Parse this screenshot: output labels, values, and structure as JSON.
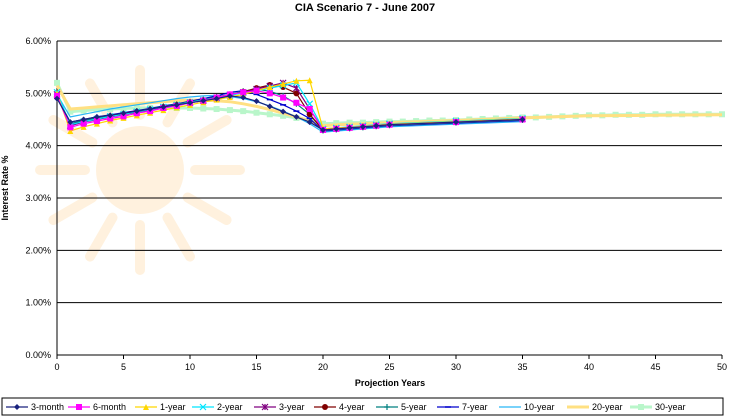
{
  "chart_data": {
    "type": "line",
    "title": "CIA Scenario 7 - June 2007",
    "xlabel": "Projection Years",
    "ylabel": "Interest Rate %",
    "xlim": [
      0,
      50
    ],
    "ylim": [
      0,
      6
    ],
    "x_ticks": [
      "0",
      "5",
      "10",
      "15",
      "20",
      "25",
      "30",
      "35",
      "40",
      "45",
      "50"
    ],
    "y_ticks": [
      "0.00%",
      "1.00%",
      "2.00%",
      "3.00%",
      "4.00%",
      "5.00%",
      "6.00%"
    ],
    "grid": "horizontal",
    "legend_position": "bottom",
    "series": [
      {
        "name": "3-month",
        "color": "#1a237e",
        "marker": "diamond",
        "x": [
          0,
          1,
          2,
          3,
          4,
          5,
          6,
          7,
          8,
          9,
          10,
          11,
          12,
          13,
          14,
          15,
          16,
          17,
          18,
          19,
          20,
          21,
          22,
          23,
          24,
          25,
          30,
          35
        ],
        "y": [
          4.9,
          4.45,
          4.5,
          4.55,
          4.58,
          4.62,
          4.66,
          4.7,
          4.74,
          4.78,
          4.82,
          4.86,
          4.9,
          4.95,
          4.92,
          4.85,
          4.75,
          4.65,
          4.55,
          4.45,
          4.3,
          4.32,
          4.34,
          4.36,
          4.38,
          4.4,
          4.45,
          4.5
        ]
      },
      {
        "name": "6-month",
        "color": "#ff00ff",
        "marker": "square",
        "x": [
          0,
          1,
          2,
          3,
          4,
          5,
          6,
          7,
          8,
          9,
          10,
          11,
          12,
          13,
          14,
          15,
          16,
          17,
          18,
          19,
          20,
          21,
          22,
          23,
          24,
          25,
          30,
          35
        ],
        "y": [
          4.95,
          4.35,
          4.42,
          4.47,
          4.52,
          4.56,
          4.62,
          4.66,
          4.72,
          4.76,
          4.82,
          4.86,
          4.92,
          4.98,
          5.02,
          5.05,
          5.0,
          4.92,
          4.82,
          4.7,
          4.3,
          4.32,
          4.34,
          4.36,
          4.38,
          4.4,
          4.45,
          4.5
        ]
      },
      {
        "name": "1-year",
        "color": "#ffd700",
        "marker": "triangle",
        "x": [
          0,
          1,
          2,
          3,
          4,
          5,
          6,
          7,
          8,
          9,
          10,
          11,
          12,
          13,
          14,
          15,
          16,
          17,
          18,
          19,
          20,
          21,
          22,
          23,
          24,
          25,
          30,
          35
        ],
        "y": [
          5.0,
          4.28,
          4.36,
          4.42,
          4.48,
          4.53,
          4.58,
          4.63,
          4.68,
          4.73,
          4.78,
          4.83,
          4.88,
          4.93,
          4.98,
          5.05,
          5.12,
          5.18,
          5.24,
          5.25,
          4.32,
          4.34,
          4.35,
          4.37,
          4.39,
          4.41,
          4.46,
          4.51
        ]
      },
      {
        "name": "2-year",
        "color": "#00e5ff",
        "marker": "x",
        "x": [
          0,
          1,
          2,
          3,
          4,
          5,
          6,
          7,
          8,
          9,
          10,
          11,
          12,
          13,
          14,
          15,
          16,
          17,
          18,
          19,
          20,
          21,
          22,
          23,
          24,
          25,
          30,
          35
        ],
        "y": [
          5.02,
          4.4,
          4.46,
          4.51,
          4.56,
          4.6,
          4.65,
          4.69,
          4.74,
          4.78,
          4.83,
          4.87,
          4.92,
          4.96,
          5.01,
          5.05,
          5.1,
          5.15,
          5.2,
          4.8,
          4.32,
          4.34,
          4.36,
          4.38,
          4.4,
          4.42,
          4.47,
          4.52
        ]
      },
      {
        "name": "3-year",
        "color": "#800080",
        "marker": "star",
        "x": [
          0,
          1,
          2,
          3,
          4,
          5,
          6,
          7,
          8,
          9,
          10,
          11,
          12,
          13,
          14,
          15,
          16,
          17,
          18,
          19,
          20,
          21,
          22,
          23,
          24,
          25,
          30,
          35
        ],
        "y": [
          4.98,
          4.38,
          4.45,
          4.5,
          4.55,
          4.59,
          4.64,
          4.68,
          4.73,
          4.77,
          4.82,
          4.86,
          4.91,
          4.96,
          5.02,
          5.08,
          5.14,
          5.2,
          5.1,
          4.7,
          4.31,
          4.33,
          4.35,
          4.37,
          4.39,
          4.41,
          4.46,
          4.51
        ]
      },
      {
        "name": "4-year",
        "color": "#800000",
        "marker": "circle",
        "x": [
          0,
          1,
          2,
          3,
          4,
          5,
          6,
          7,
          8,
          9,
          10,
          11,
          12,
          13,
          14,
          15,
          16,
          17,
          18,
          19,
          20,
          21,
          22,
          23,
          24,
          25,
          30,
          35
        ],
        "y": [
          4.96,
          4.4,
          4.46,
          4.51,
          4.56,
          4.6,
          4.65,
          4.69,
          4.74,
          4.78,
          4.83,
          4.87,
          4.92,
          4.97,
          5.03,
          5.1,
          5.16,
          5.12,
          5.0,
          4.6,
          4.3,
          4.32,
          4.34,
          4.36,
          4.38,
          4.4,
          4.45,
          4.5
        ]
      },
      {
        "name": "5-year",
        "color": "#008080",
        "marker": "plus",
        "x": [
          0,
          1,
          2,
          3,
          4,
          5,
          6,
          7,
          8,
          9,
          10,
          11,
          12,
          13,
          14,
          15,
          16,
          17,
          18,
          19,
          20,
          21,
          22,
          23,
          24,
          25,
          30,
          35
        ],
        "y": [
          4.94,
          4.42,
          4.48,
          4.53,
          4.57,
          4.61,
          4.66,
          4.7,
          4.75,
          4.79,
          4.84,
          4.88,
          4.93,
          4.98,
          5.04,
          5.08,
          5.04,
          4.95,
          4.8,
          4.6,
          4.29,
          4.31,
          4.33,
          4.35,
          4.37,
          4.39,
          4.44,
          4.49
        ]
      },
      {
        "name": "7-year",
        "color": "#0000cd",
        "marker": "dash",
        "x": [
          0,
          1,
          2,
          3,
          4,
          5,
          6,
          7,
          8,
          9,
          10,
          11,
          12,
          13,
          14,
          15,
          16,
          17,
          18,
          19,
          20,
          21,
          22,
          23,
          24,
          25,
          30,
          35
        ],
        "y": [
          4.92,
          4.45,
          4.5,
          4.55,
          4.59,
          4.63,
          4.67,
          4.71,
          4.76,
          4.8,
          4.85,
          4.9,
          4.95,
          5.02,
          5.05,
          4.98,
          4.88,
          4.78,
          4.66,
          4.52,
          4.28,
          4.3,
          4.32,
          4.34,
          4.36,
          4.38,
          4.43,
          4.48
        ]
      },
      {
        "name": "10-year",
        "color": "#29b6f6",
        "marker": "none",
        "x": [
          0,
          1,
          2,
          3,
          4,
          5,
          6,
          7,
          8,
          9,
          10,
          11,
          12,
          13,
          14,
          15,
          16,
          17,
          18,
          19,
          20,
          21,
          22,
          23,
          24,
          25,
          30,
          35
        ],
        "y": [
          4.98,
          4.55,
          4.6,
          4.65,
          4.7,
          4.74,
          4.78,
          4.82,
          4.86,
          4.9,
          4.93,
          4.95,
          4.96,
          4.94,
          4.9,
          4.84,
          4.76,
          4.66,
          4.55,
          4.42,
          4.26,
          4.28,
          4.3,
          4.32,
          4.34,
          4.36,
          4.41,
          4.46
        ]
      },
      {
        "name": "20-year",
        "color": "#ffe082",
        "marker": "none",
        "x": [
          0,
          1,
          2,
          3,
          4,
          5,
          6,
          7,
          8,
          9,
          10,
          11,
          12,
          13,
          14,
          15,
          16,
          17,
          18,
          19,
          20,
          21,
          22,
          23,
          24,
          25,
          30,
          35,
          40,
          45,
          50
        ],
        "y": [
          5.15,
          4.7,
          4.72,
          4.74,
          4.76,
          4.78,
          4.8,
          4.82,
          4.84,
          4.86,
          4.87,
          4.87,
          4.86,
          4.84,
          4.8,
          4.75,
          4.69,
          4.62,
          4.55,
          4.47,
          4.38,
          4.4,
          4.41,
          4.42,
          4.43,
          4.44,
          4.48,
          4.53,
          4.57,
          4.58,
          4.59
        ]
      },
      {
        "name": "30-year",
        "color": "#b9f6ca",
        "marker": "square",
        "x": [
          0,
          1,
          2,
          3,
          4,
          5,
          6,
          7,
          8,
          9,
          10,
          11,
          12,
          13,
          14,
          15,
          16,
          17,
          18,
          19,
          20,
          21,
          22,
          23,
          24,
          25,
          26,
          27,
          28,
          29,
          30,
          31,
          32,
          33,
          34,
          35,
          36,
          37,
          38,
          39,
          40,
          41,
          42,
          43,
          44,
          45,
          46,
          47,
          48,
          49,
          50
        ],
        "y": [
          5.2,
          4.65,
          4.67,
          4.69,
          4.7,
          4.71,
          4.72,
          4.72,
          4.72,
          4.72,
          4.72,
          4.71,
          4.7,
          4.68,
          4.66,
          4.63,
          4.6,
          4.57,
          4.53,
          4.49,
          4.42,
          4.43,
          4.44,
          4.44,
          4.45,
          4.46,
          4.46,
          4.47,
          4.48,
          4.48,
          4.49,
          4.5,
          4.51,
          4.52,
          4.53,
          4.54,
          4.54,
          4.55,
          4.56,
          4.57,
          4.58,
          4.58,
          4.59,
          4.59,
          4.59,
          4.6,
          4.6,
          4.6,
          4.6,
          4.6,
          4.6
        ]
      }
    ]
  }
}
